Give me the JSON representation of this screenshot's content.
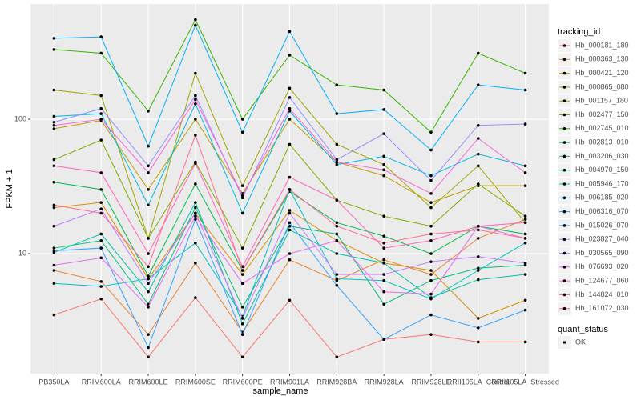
{
  "chart_data": {
    "type": "line",
    "x_label": "sample_name",
    "y_label": "FPKM + 1",
    "categories": [
      "PB350LA",
      "RRIM600LA",
      "RRIM600LE",
      "RRIM600SE",
      "RRIM600PE",
      "RRIM901LA",
      "RRIM928BA",
      "RRIM928LA",
      "RRIM928LE",
      "RRII105LA_Control",
      "RRII105LA_Stressed"
    ],
    "log_y": true,
    "grid": true,
    "ylim": [
      1.28,
      720
    ],
    "yticks": [
      10,
      100
    ],
    "legend_title": "tracking_id",
    "legend2_title": "quant_status",
    "legend2_entries": [
      "OK"
    ],
    "series": [
      {
        "name": "Hb_000181_180",
        "color": "#F8766D",
        "values": [
          3.5,
          4.6,
          1.7,
          4.7,
          1.7,
          4.5,
          1.7,
          2.3,
          2.5,
          2.2,
          2.2
        ]
      },
      {
        "name": "Hb_000363_130",
        "color": "#EA8331",
        "values": [
          7.5,
          6.2,
          2.5,
          8.5,
          2.6,
          9.0,
          6.3,
          9.0,
          7.0,
          13,
          18
        ]
      },
      {
        "name": "Hb_000421_120",
        "color": "#D89000",
        "values": [
          22,
          24,
          6.5,
          20,
          7,
          21,
          12.5,
          8.5,
          7.5,
          3.3,
          4.5
        ]
      },
      {
        "name": "Hb_000865_080",
        "color": "#C09B00",
        "values": [
          85,
          98,
          30,
          100,
          28,
          100,
          48,
          38,
          24,
          32,
          32
        ]
      },
      {
        "name": "Hb_001157_180",
        "color": "#A3A500",
        "values": [
          165,
          150,
          13,
          220,
          32,
          170,
          65,
          46,
          22,
          45,
          17
        ]
      },
      {
        "name": "Hb_002477_150",
        "color": "#7CAE00",
        "values": [
          50,
          70,
          13,
          48,
          11,
          65,
          25,
          19,
          16,
          33,
          19
        ]
      },
      {
        "name": "Hb_002745_010",
        "color": "#39B600",
        "values": [
          330,
          310,
          115,
          550,
          100,
          300,
          180,
          165,
          80,
          310,
          220
        ]
      },
      {
        "name": "Hb_002813_010",
        "color": "#00BB4E",
        "values": [
          34,
          30,
          6.8,
          33,
          7.5,
          29,
          17,
          13.5,
          10,
          16,
          14
        ]
      },
      {
        "name": "Hb_003206_030",
        "color": "#00BF7D",
        "values": [
          11,
          12.5,
          4.2,
          22,
          4,
          16,
          14,
          4.2,
          6.3,
          7.8,
          8.2
        ]
      },
      {
        "name": "Hb_004970_150",
        "color": "#00C1A3",
        "values": [
          10.2,
          14,
          5.2,
          24,
          3,
          15,
          10,
          8.5,
          4.7,
          6.4,
          7
        ]
      },
      {
        "name": "Hb_005946_170",
        "color": "#00BFC4",
        "values": [
          6,
          5.7,
          6.5,
          12,
          3.4,
          30,
          6.5,
          6.3,
          4.6,
          7.5,
          12
        ]
      },
      {
        "name": "Hb_006185_020",
        "color": "#00BAE0",
        "values": [
          105,
          110,
          23,
          130,
          20,
          115,
          46,
          53,
          38,
          55,
          45
        ]
      },
      {
        "name": "Hb_006316_070",
        "color": "#00B0F6",
        "values": [
          400,
          410,
          63,
          500,
          80,
          450,
          110,
          118,
          59,
          180,
          165
        ]
      },
      {
        "name": "Hb_015026_070",
        "color": "#35A2FF",
        "values": [
          10.5,
          11,
          2.0,
          18,
          2.5,
          17,
          5.8,
          2.3,
          3.5,
          2.8,
          3.8
        ]
      },
      {
        "name": "Hb_023827_040",
        "color": "#9590FF",
        "values": [
          95,
          120,
          45,
          150,
          26,
          145,
          50,
          78,
          35,
          90,
          92
        ]
      },
      {
        "name": "Hb_030565_090",
        "color": "#C77CFF",
        "values": [
          16,
          21.5,
          6,
          20,
          3.3,
          20,
          7,
          7,
          8.7,
          9.5,
          8.5
        ]
      },
      {
        "name": "Hb_076693_020",
        "color": "#E76BF3",
        "values": [
          8.2,
          9.3,
          4,
          19,
          6,
          10,
          12.5,
          5.2,
          5,
          16,
          13
        ]
      },
      {
        "name": "Hb_124677_060",
        "color": "#FA62DB",
        "values": [
          90,
          100,
          40,
          140,
          27,
          120,
          48,
          42,
          28,
          72,
          40
        ]
      },
      {
        "name": "Hb_144824_010",
        "color": "#FF62BC",
        "values": [
          45,
          40,
          10,
          47,
          8,
          37,
          25,
          11,
          12.5,
          16,
          17
        ]
      },
      {
        "name": "Hb_161072_030",
        "color": "#FF6C91",
        "values": [
          23,
          20,
          8,
          76,
          7.5,
          30,
          16,
          12,
          14,
          15,
          13
        ]
      }
    ]
  }
}
